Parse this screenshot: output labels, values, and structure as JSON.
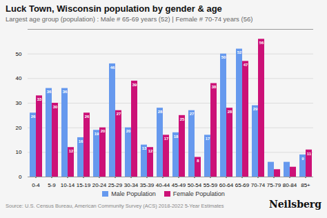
{
  "chart_data": {
    "type": "bar",
    "title": "Luck Town, Wisconsin population by gender & age",
    "subtitle": "Largest age group (population) : Male # 65-69 years (52) | Female # 70-74 years (56)",
    "annotations": [
      "Source: U.S. Census Bureau, American Community Survey (ACS) 2018-2022 5-Year Estimates",
      "Neilsberg"
    ],
    "categories": [
      "0-4",
      "5-9",
      "10-14",
      "15-19",
      "20-24",
      "25-29",
      "30-34",
      "35-39",
      "40-44",
      "45-49",
      "50-54",
      "55-59",
      "60-64",
      "65-69",
      "70-74",
      "75-79",
      "80-84",
      "85+"
    ],
    "series": [
      {
        "name": "Male Population",
        "color": "#6699ee",
        "values": [
          26,
          36,
          36,
          16,
          19,
          46,
          20,
          13,
          28,
          18,
          27,
          17,
          50,
          52,
          29,
          6,
          6,
          9
        ],
        "value_labels": [
          "26",
          "36",
          "36",
          "16",
          "19",
          "46",
          "20",
          "13",
          "28",
          "18",
          "27",
          "17",
          "50",
          "52",
          "29",
          null,
          null,
          "9"
        ]
      },
      {
        "name": "Female Population",
        "color": "#cc1177",
        "values": [
          33,
          30,
          12,
          26,
          20,
          27,
          39,
          12,
          17,
          25,
          8,
          38,
          28,
          47,
          56,
          3,
          4,
          11
        ],
        "value_labels": [
          "33",
          "30",
          "12",
          "26",
          "20",
          "27",
          "39",
          "12",
          "17",
          "25",
          "8",
          "38",
          "28",
          "47",
          "56",
          null,
          null,
          "11"
        ]
      }
    ],
    "ylim": [
      0,
      60
    ],
    "yticks": [
      0,
      10,
      20,
      30,
      40,
      50
    ],
    "grid": true,
    "legend": "bottom",
    "data_labels": true
  }
}
